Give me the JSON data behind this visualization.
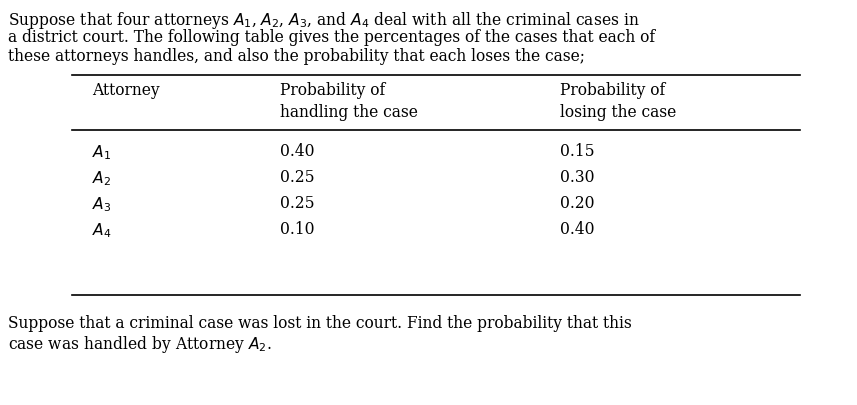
{
  "intro_line1": "Suppose that four attorneys $A_1$, $A_2$, $A_3$, and $A_4$ deal with all the criminal cases in",
  "intro_line2": "a district court. The following table gives the percentages of the cases that each of",
  "intro_line3": "these attorneys handles, and also the probability that each loses the case;",
  "col_header1": "Attorney",
  "col_header2a": "Probability of",
  "col_header2b": "handling the case",
  "col_header3a": "Probability of",
  "col_header3b": "losing the case",
  "attorneys": [
    "$A_1$",
    "$A_2$",
    "$A_3$",
    "$A_4$"
  ],
  "handling": [
    "0.40",
    "0.25",
    "0.25",
    "0.10"
  ],
  "losing": [
    "0.15",
    "0.30",
    "0.20",
    "0.40"
  ],
  "footer_line1": "Suppose that a criminal case was lost in the court. Find the probability that this",
  "footer_line2": "case was handled by Attorney $A_2$.",
  "bg_color": "#ffffff",
  "text_color": "#000000",
  "font_size": 11.2,
  "fig_width": 8.57,
  "fig_height": 4.05,
  "dpi": 100
}
